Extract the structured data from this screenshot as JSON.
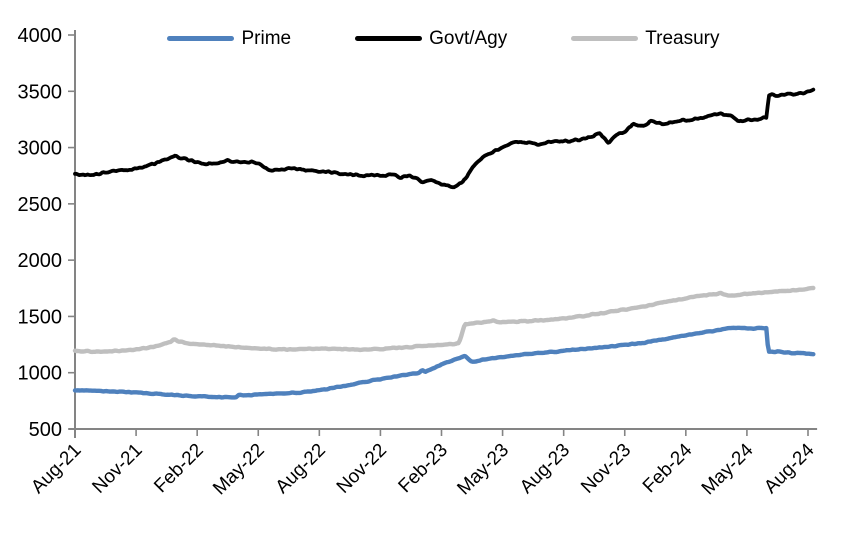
{
  "page": {
    "background": "#ffffff"
  },
  "chart_data": {
    "type": "line",
    "title": "",
    "xlabel": "",
    "ylabel": "",
    "grid": "off",
    "legend_position": "top-center",
    "axis_color": "#848484",
    "text_color": "#000000",
    "ylim": [
      500,
      4000
    ],
    "y_ticks": [
      500,
      1000,
      1500,
      2000,
      2500,
      3000,
      3500,
      4000
    ],
    "x_tick_labels": [
      "Aug-21",
      "Nov-21",
      "Feb-22",
      "May-22",
      "Aug-22",
      "Nov-22",
      "Feb-23",
      "May-23",
      "Aug-23",
      "Nov-23",
      "Feb-24",
      "May-24",
      "Aug-24"
    ],
    "x_tick_positions_months": [
      0,
      3,
      6,
      9,
      12,
      15,
      18,
      21,
      24,
      27,
      30,
      33,
      36
    ],
    "x_range_months": [
      0,
      36.3
    ],
    "series": [
      {
        "name": "Prime",
        "color": "#4F81BD",
        "points": [
          [
            0,
            845
          ],
          [
            1,
            838
          ],
          [
            2,
            832
          ],
          [
            3,
            825
          ],
          [
            4,
            812
          ],
          [
            5,
            800
          ],
          [
            6,
            790
          ],
          [
            7,
            784
          ],
          [
            7.9,
            783
          ],
          [
            8.05,
            800
          ],
          [
            8.4,
            797
          ],
          [
            9,
            805
          ],
          [
            10,
            813
          ],
          [
            11,
            824
          ],
          [
            12,
            845
          ],
          [
            13,
            875
          ],
          [
            14,
            910
          ],
          [
            15,
            945
          ],
          [
            16,
            975
          ],
          [
            16.9,
            998
          ],
          [
            17.05,
            1028
          ],
          [
            17.2,
            1008
          ],
          [
            18,
            1075
          ],
          [
            18.8,
            1125
          ],
          [
            19.15,
            1150
          ],
          [
            19.5,
            1095
          ],
          [
            20,
            1115
          ],
          [
            21,
            1140
          ],
          [
            22,
            1162
          ],
          [
            23,
            1178
          ],
          [
            24,
            1195
          ],
          [
            25,
            1212
          ],
          [
            26,
            1228
          ],
          [
            27,
            1247
          ],
          [
            28,
            1268
          ],
          [
            29,
            1300
          ],
          [
            30,
            1332
          ],
          [
            31,
            1362
          ],
          [
            32,
            1390
          ],
          [
            32.6,
            1402
          ],
          [
            33.2,
            1392
          ],
          [
            33.95,
            1396
          ],
          [
            34.05,
            1183
          ],
          [
            34.6,
            1188
          ],
          [
            35.2,
            1175
          ],
          [
            36,
            1170
          ],
          [
            36.3,
            1166
          ]
        ]
      },
      {
        "name": "Govt/Agy",
        "color": "#000000",
        "points": [
          [
            0,
            2770
          ],
          [
            0.5,
            2755
          ],
          [
            1,
            2765
          ],
          [
            2,
            2790
          ],
          [
            3,
            2810
          ],
          [
            4,
            2862
          ],
          [
            4.9,
            2933
          ],
          [
            5.4,
            2898
          ],
          [
            6,
            2872
          ],
          [
            6.5,
            2852
          ],
          [
            7,
            2865
          ],
          [
            7.5,
            2888
          ],
          [
            8,
            2872
          ],
          [
            8.7,
            2870
          ],
          [
            9,
            2852
          ],
          [
            9.6,
            2795
          ],
          [
            10,
            2802
          ],
          [
            10.8,
            2815
          ],
          [
            11.5,
            2798
          ],
          [
            12,
            2790
          ],
          [
            13,
            2772
          ],
          [
            14,
            2755
          ],
          [
            15,
            2748
          ],
          [
            15.5,
            2762
          ],
          [
            16,
            2735
          ],
          [
            16.4,
            2755
          ],
          [
            17,
            2700
          ],
          [
            17.5,
            2712
          ],
          [
            18,
            2672
          ],
          [
            18.6,
            2655
          ],
          [
            19,
            2690
          ],
          [
            19.3,
            2760
          ],
          [
            19.8,
            2885
          ],
          [
            20.3,
            2935
          ],
          [
            21,
            3010
          ],
          [
            21.6,
            3048
          ],
          [
            22.3,
            3040
          ],
          [
            23,
            3032
          ],
          [
            23.6,
            3062
          ],
          [
            24.3,
            3055
          ],
          [
            25,
            3082
          ],
          [
            25.8,
            3122
          ],
          [
            26.2,
            3042
          ],
          [
            26.6,
            3115
          ],
          [
            27,
            3142
          ],
          [
            27.4,
            3205
          ],
          [
            27.8,
            3185
          ],
          [
            28.3,
            3232
          ],
          [
            29,
            3212
          ],
          [
            29.6,
            3238
          ],
          [
            30.2,
            3242
          ],
          [
            31,
            3272
          ],
          [
            31.6,
            3302
          ],
          [
            32.2,
            3282
          ],
          [
            32.6,
            3232
          ],
          [
            33,
            3242
          ],
          [
            33.6,
            3252
          ],
          [
            33.95,
            3268
          ],
          [
            34.08,
            3468
          ],
          [
            34.5,
            3458
          ],
          [
            35,
            3482
          ],
          [
            35.5,
            3472
          ],
          [
            36,
            3498
          ],
          [
            36.3,
            3522
          ]
        ]
      },
      {
        "name": "Treasury",
        "color": "#BFBFBF",
        "points": [
          [
            0,
            1196
          ],
          [
            1,
            1186
          ],
          [
            2,
            1192
          ],
          [
            3,
            1206
          ],
          [
            4,
            1238
          ],
          [
            4.7,
            1272
          ],
          [
            4.85,
            1298
          ],
          [
            5.1,
            1276
          ],
          [
            6,
            1252
          ],
          [
            7,
            1240
          ],
          [
            8,
            1228
          ],
          [
            9,
            1215
          ],
          [
            10,
            1206
          ],
          [
            11,
            1210
          ],
          [
            12,
            1216
          ],
          [
            13,
            1212
          ],
          [
            14,
            1206
          ],
          [
            15,
            1212
          ],
          [
            16,
            1221
          ],
          [
            17,
            1236
          ],
          [
            18,
            1250
          ],
          [
            18.85,
            1262
          ],
          [
            19.15,
            1432
          ],
          [
            20,
            1447
          ],
          [
            20.5,
            1462
          ],
          [
            21,
            1450
          ],
          [
            22,
            1456
          ],
          [
            23,
            1466
          ],
          [
            24,
            1481
          ],
          [
            25,
            1506
          ],
          [
            26,
            1532
          ],
          [
            27,
            1562
          ],
          [
            28,
            1592
          ],
          [
            29,
            1627
          ],
          [
            30,
            1662
          ],
          [
            30.6,
            1678
          ],
          [
            31.3,
            1697
          ],
          [
            31.7,
            1706
          ],
          [
            32.1,
            1681
          ],
          [
            32.6,
            1692
          ],
          [
            33,
            1700
          ],
          [
            34,
            1716
          ],
          [
            35,
            1727
          ],
          [
            36,
            1746
          ],
          [
            36.3,
            1756
          ]
        ]
      }
    ]
  }
}
